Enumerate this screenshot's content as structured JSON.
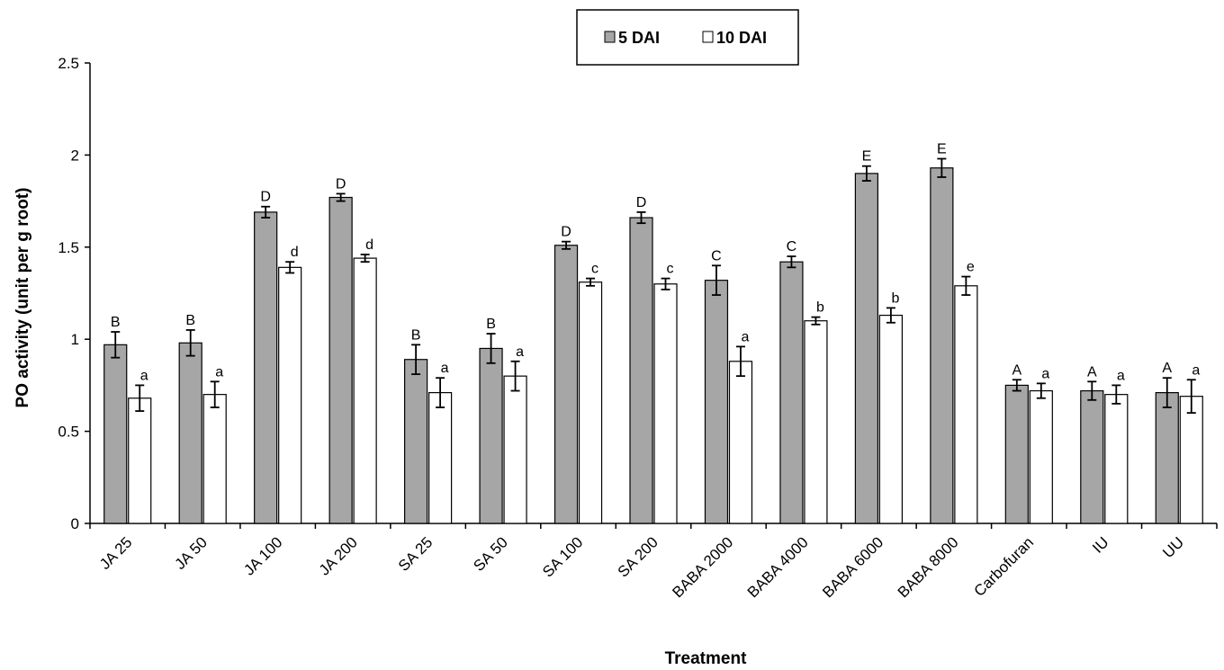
{
  "chart_data": {
    "type": "bar",
    "xlabel": "Treatment",
    "ylabel": "PO activity (unit per g root)",
    "ylim": [
      0,
      2.5
    ],
    "yticks": [
      "0",
      "0.5",
      "1",
      "1.5",
      "2",
      "2.5"
    ],
    "grid": false,
    "legend_position": "top-center",
    "categories": [
      "JA 25",
      "JA 50",
      "JA 100",
      "JA 200",
      "SA 25",
      "SA 50",
      "SA 100",
      "SA 200",
      "BABA 2000",
      "BABA 4000",
      "BABA 6000",
      "BABA 8000",
      "Carbofuran",
      "IU",
      "UU"
    ],
    "series": [
      {
        "name": "5 DAI",
        "color": "#a6a6a6",
        "values": [
          0.97,
          0.98,
          1.69,
          1.77,
          0.89,
          0.95,
          1.51,
          1.66,
          1.32,
          1.42,
          1.9,
          1.93,
          0.75,
          0.72,
          0.71
        ],
        "errors": [
          0.07,
          0.07,
          0.03,
          0.02,
          0.08,
          0.08,
          0.02,
          0.03,
          0.08,
          0.03,
          0.04,
          0.05,
          0.03,
          0.05,
          0.08
        ],
        "letters": [
          "B",
          "B",
          "D",
          "D",
          "B",
          "B",
          "D",
          "D",
          "C",
          "C",
          "E",
          "E",
          "A",
          "A",
          "A"
        ]
      },
      {
        "name": "10 DAI",
        "color": "#ffffff",
        "values": [
          0.68,
          0.7,
          1.39,
          1.44,
          0.71,
          0.8,
          1.31,
          1.3,
          0.88,
          1.1,
          1.13,
          1.29,
          0.72,
          0.7,
          0.69
        ],
        "errors": [
          0.07,
          0.07,
          0.03,
          0.02,
          0.08,
          0.08,
          0.02,
          0.03,
          0.08,
          0.02,
          0.04,
          0.05,
          0.04,
          0.05,
          0.09
        ],
        "letters": [
          "a",
          "a",
          "d",
          "d",
          "a",
          "a",
          "c",
          "c",
          "a",
          "b",
          "b",
          "e",
          "a",
          "a",
          "a"
        ]
      }
    ]
  }
}
